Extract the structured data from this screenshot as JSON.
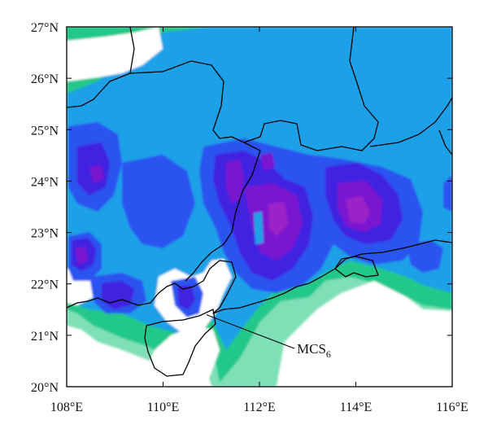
{
  "map": {
    "x_axis": {
      "range": [
        108,
        116
      ],
      "ticks": [
        {
          "value": 108,
          "label": "108°E"
        },
        {
          "value": 110,
          "label": "110°E"
        },
        {
          "value": 112,
          "label": "112°E"
        },
        {
          "value": 114,
          "label": "114°E"
        },
        {
          "value": 116,
          "label": "116°E"
        }
      ]
    },
    "y_axis": {
      "range": [
        20,
        27
      ],
      "ticks": [
        {
          "value": 20,
          "label": "20°N"
        },
        {
          "value": 21,
          "label": "21°N"
        },
        {
          "value": 22,
          "label": "22°N"
        },
        {
          "value": 23,
          "label": "23°N"
        },
        {
          "value": 24,
          "label": "24°N"
        },
        {
          "value": 25,
          "label": "25°N"
        },
        {
          "value": 26,
          "label": "26°N"
        },
        {
          "value": 27,
          "label": "27°N"
        }
      ]
    },
    "annotation": {
      "label_main": "MCS",
      "label_sub": "6",
      "target_lon": 110.9,
      "target_lat": 21.4
    },
    "colors": {
      "frame": "#000000",
      "boundary": "#000000",
      "level_1": "#7fe0b8",
      "level_2": "#20c88a",
      "level_3": "#1ea0e8",
      "level_4": "#2a52f0",
      "level_5": "#4020e0",
      "level_6": "#7a18d0",
      "level_7": "#9a20c8"
    }
  }
}
